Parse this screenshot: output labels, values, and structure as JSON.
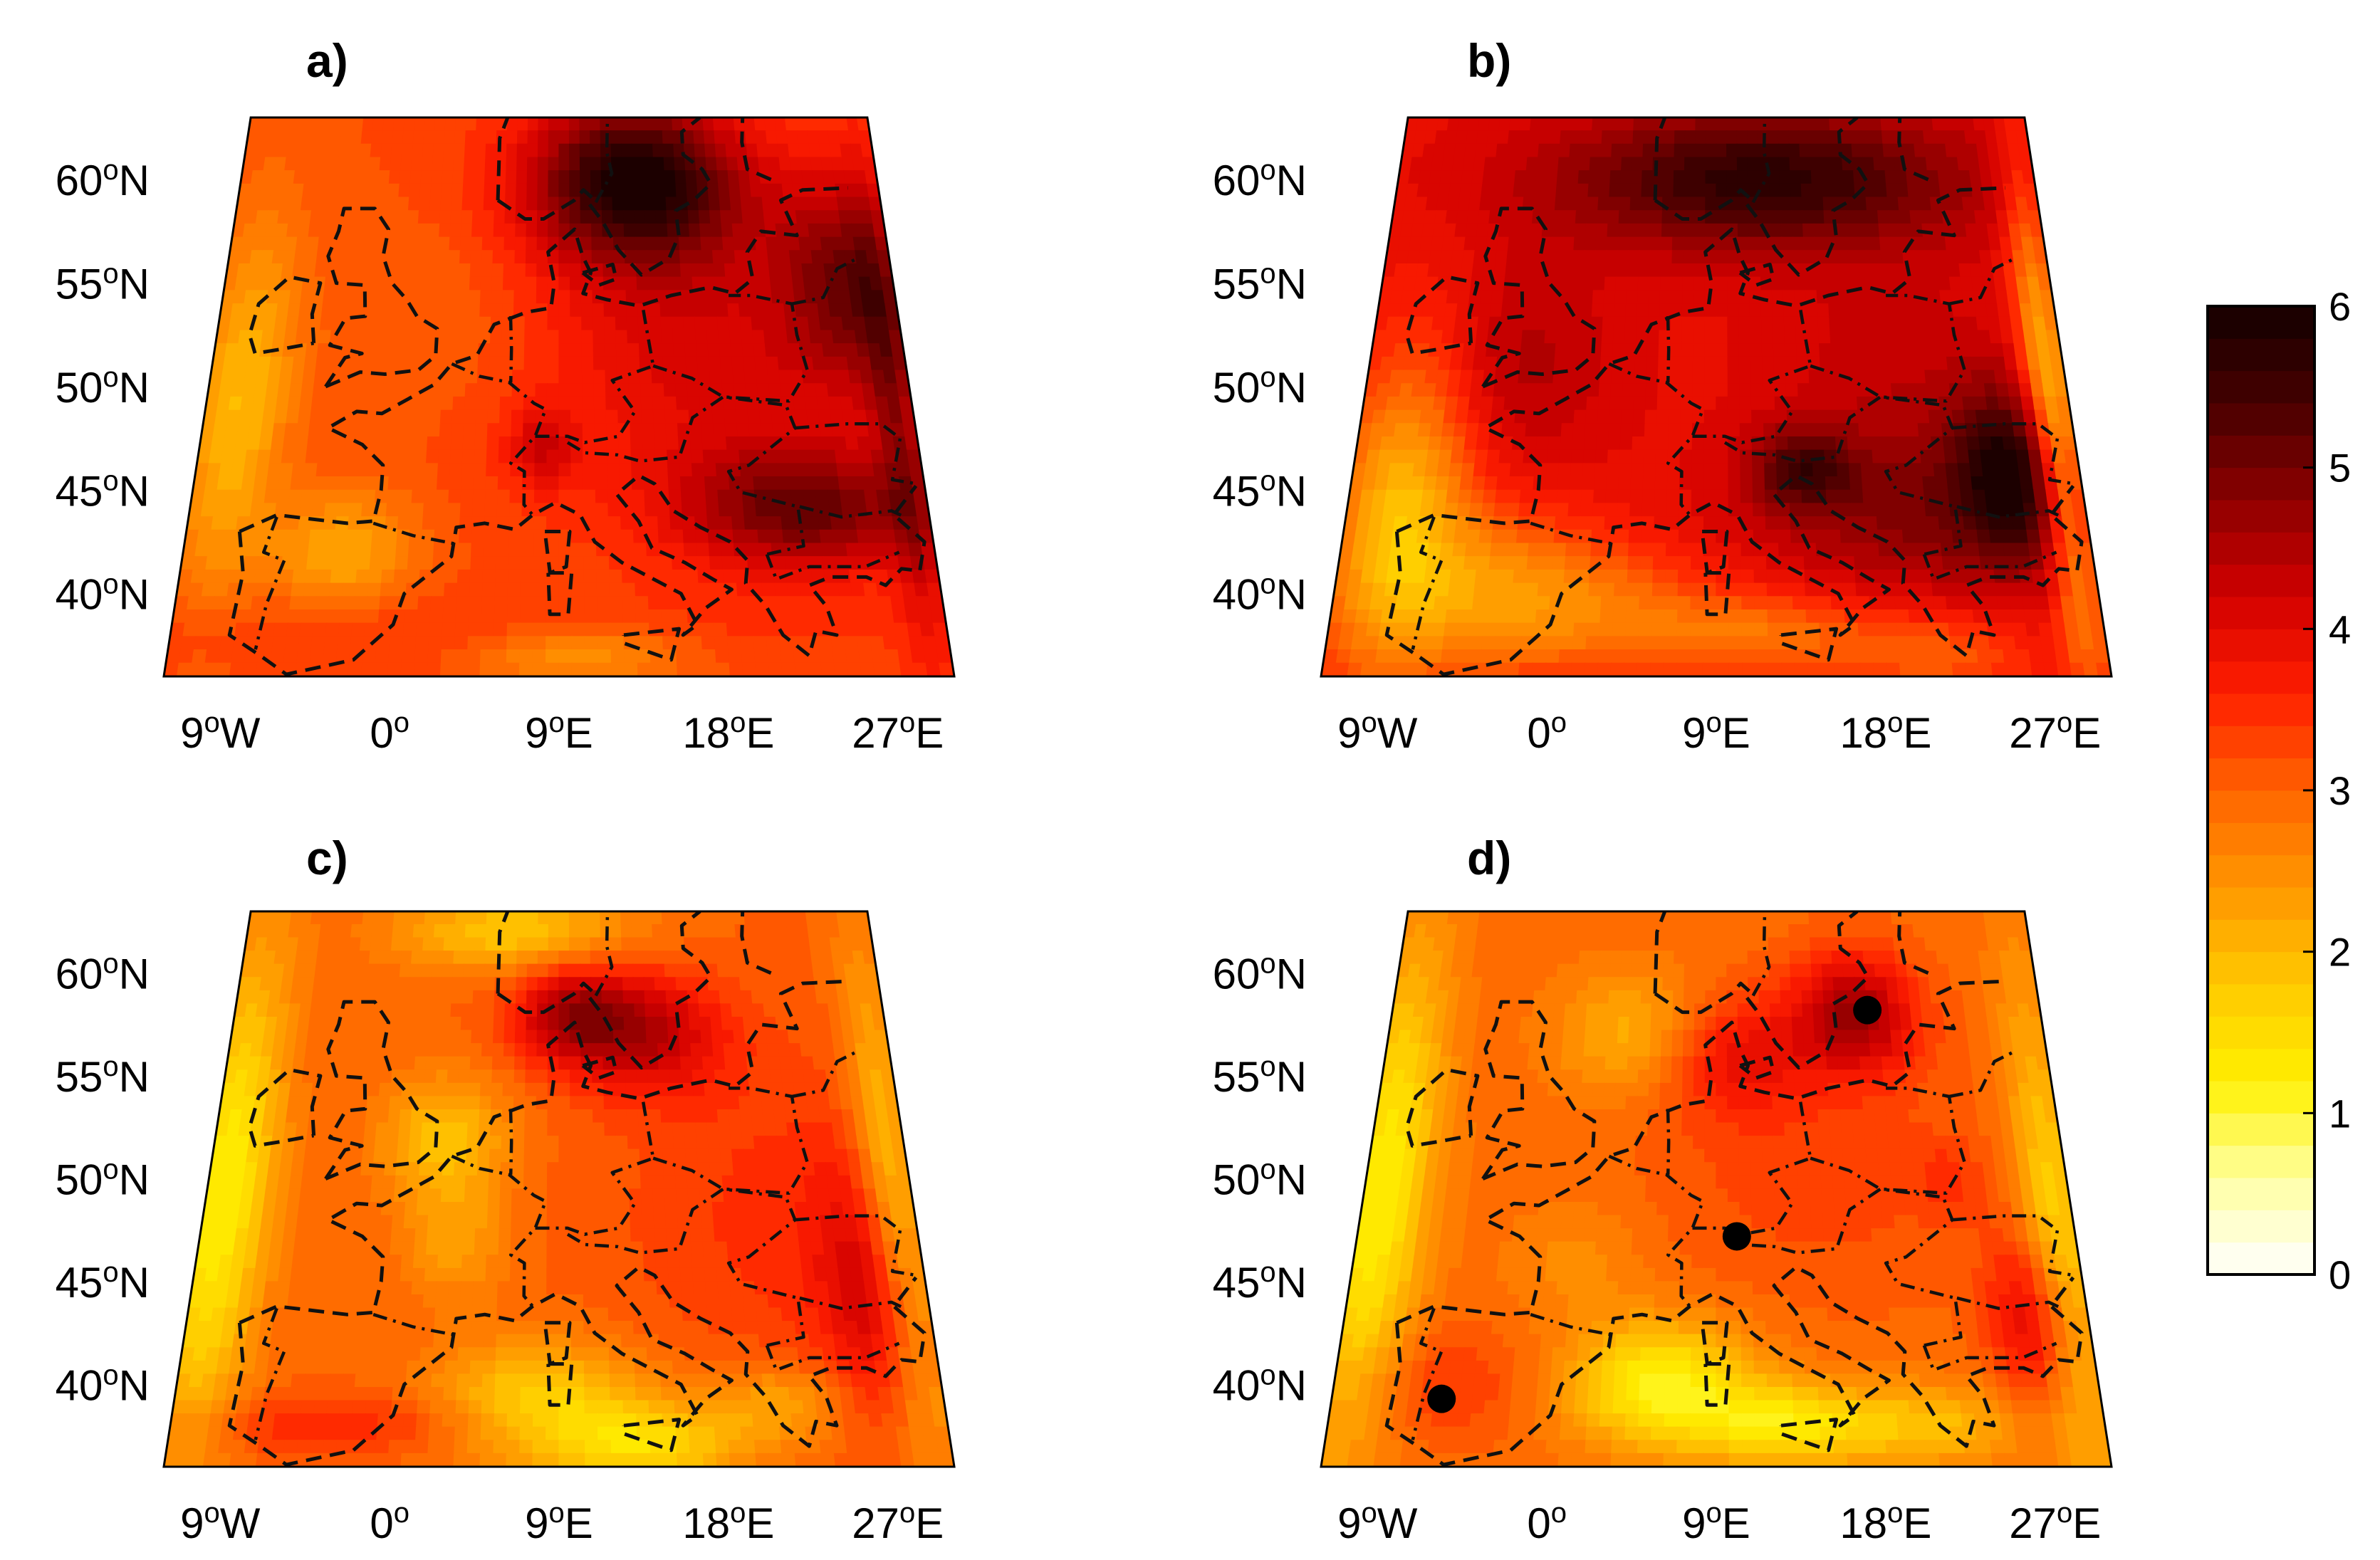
{
  "figure": {
    "type": "map-panels",
    "colorbar": {
      "min": 0,
      "max": 6,
      "levels": 30,
      "ticks": [
        "0",
        "1",
        "2",
        "3",
        "4",
        "5",
        "6"
      ],
      "colormap": [
        "#ffffff",
        "#ffffa0",
        "#fff000",
        "#ffc800",
        "#ff9600",
        "#ff6400",
        "#ff1e00",
        "#d20000",
        "#8c0000",
        "#460000",
        "#140000"
      ]
    },
    "lat_labels": [
      {
        "deg": "60",
        "hemi": "N",
        "lat": 60
      },
      {
        "deg": "55",
        "hemi": "N",
        "lat": 55
      },
      {
        "deg": "50",
        "hemi": "N",
        "lat": 50
      },
      {
        "deg": "45",
        "hemi": "N",
        "lat": 45
      },
      {
        "deg": "40",
        "hemi": "N",
        "lat": 40
      }
    ],
    "lon_labels": [
      {
        "deg": "9",
        "hemi": "W",
        "lon": -9
      },
      {
        "deg": "0",
        "hemi": "",
        "lon": 0
      },
      {
        "deg": "9",
        "hemi": "E",
        "lon": 9
      },
      {
        "deg": "18",
        "hemi": "E",
        "lon": 18
      },
      {
        "deg": "27",
        "hemi": "E",
        "lon": 27
      }
    ],
    "extent": {
      "lon_min": -12,
      "lon_max": 30,
      "lat_min": 36,
      "lat_max": 63
    },
    "panels": [
      {
        "label": "a)",
        "base": 3.2,
        "blobs": [
          [
            14,
            60,
            7,
            4,
            2.6
          ],
          [
            27,
            55,
            4,
            5,
            1.4
          ],
          [
            23,
            44,
            7,
            3,
            1.7
          ],
          [
            18,
            52,
            12,
            8,
            0.9
          ],
          [
            -10,
            49,
            3,
            9,
            -1.2
          ],
          [
            -3,
            42,
            4,
            3,
            -1.0
          ],
          [
            2,
            53,
            8,
            5,
            -0.3
          ],
          [
            0,
            38,
            28,
            2,
            0.3
          ],
          [
            10,
            37,
            6,
            1.5,
            -0.9
          ],
          [
            29,
            48,
            1.5,
            12,
            1.0
          ],
          [
            8,
            47,
            2,
            2,
            0.8
          ]
        ]
      },
      {
        "label": "b)",
        "base": 3.9,
        "blobs": [
          [
            12,
            60,
            14,
            3.5,
            1.8
          ],
          [
            26,
            46,
            3,
            4,
            1.5
          ],
          [
            14,
            46,
            3,
            2,
            1.2
          ],
          [
            22,
            44,
            10,
            4,
            1.0
          ],
          [
            -9,
            44,
            4,
            8,
            -1.9
          ],
          [
            -3,
            40,
            6,
            4,
            -1.3
          ],
          [
            4,
            39,
            6,
            3,
            -0.8
          ],
          [
            12,
            38,
            6,
            2,
            -1.0
          ],
          [
            21,
            37,
            5,
            2,
            -0.8
          ],
          [
            29,
            48,
            1.5,
            12,
            -2.0
          ],
          [
            -3,
            51,
            6,
            5,
            0.6
          ],
          [
            20,
            51,
            8,
            5,
            0.4
          ]
        ]
      },
      {
        "label": "c)",
        "base": 3.0,
        "blobs": [
          [
            10,
            58,
            4,
            2.5,
            1.5
          ],
          [
            15,
            57,
            5,
            3,
            1.2
          ],
          [
            27,
            44,
            3,
            6,
            1.0
          ],
          [
            23,
            48,
            10,
            8,
            0.5
          ],
          [
            -11,
            49,
            3,
            12,
            -1.8
          ],
          [
            2,
            52,
            4,
            3,
            -1.1
          ],
          [
            8,
            39,
            6,
            3,
            -1.4
          ],
          [
            14,
            37,
            5,
            2,
            -1.3
          ],
          [
            -2,
            38,
            10,
            1.5,
            0.6
          ],
          [
            3,
            47,
            3,
            3,
            -0.7
          ],
          [
            21,
            39,
            4,
            2,
            -0.8
          ],
          [
            6,
            62,
            8,
            2,
            -1.2
          ],
          [
            29,
            48,
            2,
            12,
            -1.4
          ]
        ]
      },
      {
        "label": "d)",
        "base": 2.9,
        "blobs": [
          [
            18,
            58,
            4,
            3,
            1.7
          ],
          [
            10,
            56,
            5,
            3,
            1.0
          ],
          [
            27,
            43,
            2.5,
            4,
            1.2
          ],
          [
            15,
            50,
            10,
            6,
            0.4
          ],
          [
            -11,
            49,
            3,
            12,
            -1.7
          ],
          [
            6,
            40,
            5,
            3,
            -1.8
          ],
          [
            13,
            38,
            5,
            2,
            -1.5
          ],
          [
            4,
            57,
            5,
            3,
            -0.9
          ],
          [
            -6,
            40,
            5,
            3,
            0.5
          ],
          [
            1,
            46,
            4,
            3,
            -0.4
          ],
          [
            21,
            38,
            5,
            2,
            -0.9
          ],
          [
            29,
            47,
            2,
            12,
            -1.3
          ],
          [
            23,
            50,
            2,
            2,
            0.4
          ]
        ],
        "markers": [
          {
            "lon": -6,
            "lat": 39.3
          },
          {
            "lon": 10.2,
            "lat": 47.2
          },
          {
            "lon": 18.8,
            "lat": 58.2
          }
        ]
      }
    ],
    "coastline": [
      [
        [
          -9,
          43
        ],
        [
          -8.5,
          41
        ],
        [
          -8.8,
          38
        ],
        [
          -7,
          37
        ],
        [
          -5.5,
          36.1
        ],
        [
          -2,
          36.8
        ],
        [
          0,
          38.5
        ],
        [
          0.5,
          40
        ],
        [
          3,
          41.8
        ],
        [
          3.2,
          43.2
        ],
        [
          4.8,
          43.4
        ],
        [
          6.5,
          43.1
        ],
        [
          7.5,
          43.8
        ],
        [
          8.8,
          44.4
        ],
        [
          10.2,
          43.8
        ],
        [
          11,
          42.5
        ],
        [
          12.5,
          41.5
        ],
        [
          14,
          40.8
        ],
        [
          15.7,
          40
        ],
        [
          16.5,
          38.5
        ],
        [
          15.7,
          38
        ],
        [
          17,
          39.3
        ],
        [
          18.5,
          40.2
        ],
        [
          17.5,
          40.7
        ],
        [
          16,
          41.5
        ],
        [
          14.2,
          42.2
        ],
        [
          13.5,
          43.5
        ],
        [
          12.3,
          44.8
        ],
        [
          13.6,
          45.7
        ],
        [
          14.5,
          45.3
        ],
        [
          15.5,
          44
        ],
        [
          17,
          43.2
        ],
        [
          18.6,
          42.5
        ],
        [
          19.5,
          41.6
        ],
        [
          19.3,
          40.5
        ],
        [
          20.3,
          39.4
        ],
        [
          21.1,
          38
        ],
        [
          22.4,
          37
        ],
        [
          22.9,
          38.2
        ],
        [
          24,
          38
        ],
        [
          23.6,
          39.4
        ],
        [
          22.8,
          40.4
        ],
        [
          24,
          40.8
        ],
        [
          26,
          40.8
        ],
        [
          27,
          40.4
        ],
        [
          28,
          41.2
        ],
        [
          29,
          41.1
        ],
        [
          29.5,
          42.5
        ],
        [
          28,
          43.8
        ],
        [
          29.5,
          45.2
        ]
      ],
      [
        [
          -9,
          43
        ],
        [
          -7,
          43.8
        ],
        [
          -3,
          43.4
        ],
        [
          -1.5,
          43.5
        ],
        [
          -1.2,
          45
        ],
        [
          -1.2,
          46.2
        ],
        [
          -2.5,
          47.2
        ],
        [
          -4.6,
          48
        ],
        [
          -3,
          48.8
        ],
        [
          -1.5,
          48.7
        ],
        [
          0,
          49.4
        ],
        [
          1.5,
          50.1
        ],
        [
          2.5,
          51.1
        ],
        [
          4,
          51.5
        ],
        [
          5,
          53
        ],
        [
          7,
          53.6
        ],
        [
          8.5,
          53.8
        ],
        [
          8.7,
          55
        ],
        [
          8.3,
          56.5
        ],
        [
          10,
          57.6
        ],
        [
          10.5,
          56.3
        ],
        [
          11,
          55.5
        ],
        [
          10.5,
          54.5
        ],
        [
          12,
          54.2
        ],
        [
          14,
          53.9
        ],
        [
          16,
          54.4
        ],
        [
          18.5,
          54.8
        ],
        [
          20,
          54.5
        ],
        [
          21.2,
          55.2
        ],
        [
          21,
          56.5
        ],
        [
          22,
          57.5
        ],
        [
          24.3,
          57.3
        ],
        [
          23.5,
          59
        ],
        [
          25,
          59.5
        ],
        [
          28,
          59.6
        ]
      ],
      [
        [
          -5,
          50
        ],
        [
          -4,
          51.4
        ],
        [
          -3,
          51.6
        ],
        [
          -5,
          52
        ],
        [
          -4.2,
          53.3
        ],
        [
          -3,
          53.4
        ],
        [
          -3.2,
          54.9
        ],
        [
          -5,
          55
        ],
        [
          -5.7,
          56.3
        ],
        [
          -5.2,
          57.5
        ],
        [
          -5,
          58.6
        ],
        [
          -3,
          58.6
        ],
        [
          -2,
          57.6
        ],
        [
          -2.2,
          56.3
        ],
        [
          -1.5,
          55
        ],
        [
          -0.5,
          54.2
        ],
        [
          0.2,
          53.4
        ],
        [
          1.5,
          52.8
        ],
        [
          1.5,
          51.5
        ],
        [
          0.5,
          50.8
        ],
        [
          -1.5,
          50.6
        ],
        [
          -3,
          50.7
        ],
        [
          -5,
          50
        ]
      ],
      [
        [
          -6,
          52.1
        ],
        [
          -6.3,
          53.5
        ],
        [
          -6,
          55
        ],
        [
          -8,
          55.3
        ],
        [
          -9.7,
          54
        ],
        [
          -10,
          52.5
        ],
        [
          -9.5,
          51.6
        ],
        [
          -8,
          51.8
        ],
        [
          -6,
          52.1
        ]
      ],
      [
        [
          8.2,
          43
        ],
        [
          9.6,
          43
        ],
        [
          9.4,
          41.3
        ],
        [
          8.5,
          41
        ],
        [
          8.2,
          43
        ]
      ],
      [
        [
          8.4,
          41
        ],
        [
          9.7,
          41
        ],
        [
          9.5,
          39
        ],
        [
          8.5,
          39
        ],
        [
          8.4,
          41
        ]
      ],
      [
        [
          12.5,
          38
        ],
        [
          15.5,
          38.3
        ],
        [
          15,
          36.8
        ],
        [
          12.5,
          37.6
        ],
        [
          12.5,
          38
        ]
      ],
      [
        [
          11,
          58.8
        ],
        [
          11.8,
          58
        ],
        [
          12.8,
          56.6
        ],
        [
          14.2,
          55.4
        ],
        [
          16,
          56.2
        ],
        [
          16.7,
          57.3
        ],
        [
          16.6,
          58.5
        ],
        [
          17.8,
          59
        ],
        [
          19,
          59.8
        ],
        [
          18.5,
          60.5
        ],
        [
          17.3,
          61.2
        ],
        [
          17.3,
          62.3
        ],
        [
          18.6,
          63
        ]
      ],
      [
        [
          5,
          59
        ],
        [
          6.8,
          58.1
        ],
        [
          8,
          58.1
        ],
        [
          10,
          59
        ],
        [
          10.6,
          59.5
        ],
        [
          11.2,
          59.1
        ]
      ],
      [
        [
          10.5,
          55.5
        ],
        [
          12.4,
          55.9
        ],
        [
          12.6,
          55.2
        ],
        [
          11.5,
          54.9
        ],
        [
          10.5,
          55.5
        ]
      ],
      [
        [
          5,
          59
        ],
        [
          5,
          62
        ],
        [
          5.5,
          63
        ]
      ],
      [
        [
          23,
          60
        ],
        [
          21.5,
          60.5
        ],
        [
          21.3,
          61.8
        ],
        [
          21.5,
          63
        ]
      ]
    ],
    "borders": [
      [
        [
          -1.5,
          43.4
        ],
        [
          0.8,
          42.8
        ],
        [
          3.2,
          42.4
        ]
      ],
      [
        [
          -7,
          43.7
        ],
        [
          -7.5,
          42
        ],
        [
          -6.3,
          41.6
        ],
        [
          -7,
          39.5
        ],
        [
          -7.3,
          37.3
        ]
      ],
      [
        [
          2.5,
          51.1
        ],
        [
          4.2,
          50.5
        ],
        [
          6,
          50.2
        ],
        [
          7.5,
          49.2
        ],
        [
          8.2,
          48.9
        ],
        [
          7.6,
          47.6
        ],
        [
          6.2,
          46.3
        ],
        [
          7,
          45.9
        ],
        [
          7,
          44.3
        ],
        [
          7.5,
          43.8
        ]
      ],
      [
        [
          6,
          53.4
        ],
        [
          6.1,
          51.8
        ],
        [
          6.1,
          50.6
        ],
        [
          6.1,
          50.2
        ]
      ],
      [
        [
          7.6,
          47.6
        ],
        [
          9.5,
          47.6
        ],
        [
          10.5,
          47.3
        ],
        [
          12.5,
          47.6
        ],
        [
          13.5,
          48.8
        ],
        [
          12.2,
          50.3
        ],
        [
          14.7,
          51
        ],
        [
          14.3,
          53.3
        ],
        [
          14.2,
          53.9
        ]
      ],
      [
        [
          9.5,
          47.3
        ],
        [
          10.5,
          46.8
        ],
        [
          12.4,
          46.7
        ],
        [
          13.7,
          46.4
        ],
        [
          16,
          46.6
        ],
        [
          16.9,
          48.5
        ],
        [
          18.8,
          49.5
        ],
        [
          22.5,
          49.1
        ],
        [
          22.9,
          48
        ],
        [
          20,
          46.2
        ],
        [
          18.8,
          45.9
        ],
        [
          19.4,
          44.9
        ],
        [
          22.6,
          44.2
        ],
        [
          22.7,
          42.3
        ],
        [
          20.6,
          41.9
        ]
      ],
      [
        [
          14.7,
          51
        ],
        [
          17,
          50.4
        ],
        [
          18.8,
          49.5
        ],
        [
          22.7,
          49.3
        ],
        [
          24,
          50.8
        ],
        [
          23.6,
          52.5
        ],
        [
          23.5,
          54
        ],
        [
          21,
          54.4
        ],
        [
          19.6,
          54.4
        ]
      ],
      [
        [
          23.5,
          54
        ],
        [
          25.5,
          54.3
        ],
        [
          26.6,
          55.7
        ],
        [
          28,
          56.2
        ]
      ],
      [
        [
          22.9,
          48
        ],
        [
          26,
          48.2
        ],
        [
          28,
          48.2
        ],
        [
          29,
          47.5
        ],
        [
          28.2,
          45.5
        ],
        [
          29.6,
          45.3
        ]
      ],
      [
        [
          22.7,
          44.2
        ],
        [
          25,
          43.7
        ],
        [
          27.9,
          44
        ],
        [
          28.6,
          43.7
        ]
      ],
      [
        [
          20.6,
          41.9
        ],
        [
          21,
          40.7
        ],
        [
          22.9,
          41.3
        ],
        [
          26,
          41.3
        ],
        [
          28,
          42
        ]
      ],
      [
        [
          11.4,
          58.9
        ],
        [
          12.5,
          60.3
        ],
        [
          12.2,
          61.3
        ],
        [
          12.3,
          63
        ]
      ]
    ]
  }
}
